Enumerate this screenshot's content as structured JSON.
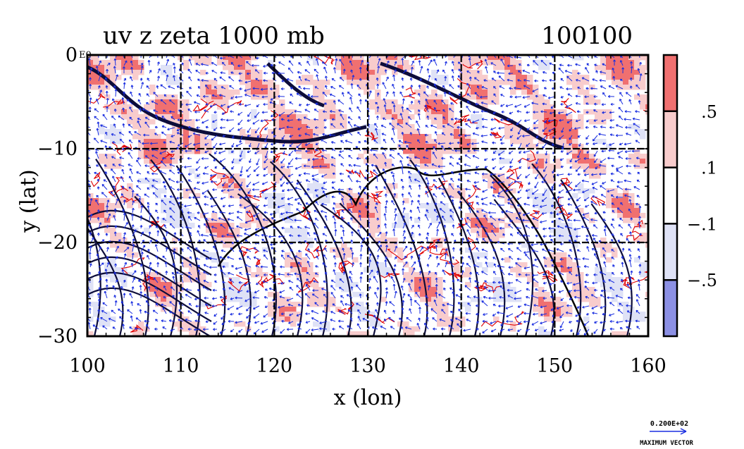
{
  "chart_data": {
    "type": "heatmap",
    "title": "uv z zeta 1000 mb",
    "time_label": "100100",
    "xlabel": "x (lon)",
    "ylabel": "y (lat)",
    "xlim": [
      100,
      160
    ],
    "ylim": [
      -30,
      0
    ],
    "x_ticks": [
      "100",
      "110",
      "120",
      "130",
      "140",
      "150",
      "160"
    ],
    "y_ticks": [
      "0",
      "−10",
      "−20",
      "−30"
    ],
    "corner_label": "E0",
    "grid": true,
    "colorbar": {
      "labels": [
        ".5",
        ".1",
        "−.1",
        "−.5"
      ],
      "colors": [
        "#f07070",
        "#f8cccc",
        "#ffffff",
        "#dfe2f6",
        "#8c90e4"
      ]
    },
    "vector_key": {
      "value": "0.200E+02",
      "label": "MAXIMUM VECTOR"
    },
    "colors": {
      "positive_strong": "#f07070",
      "positive_weak": "#f8cccc",
      "negative_weak": "#dfe2f6",
      "negative_strong": "#8c90e4",
      "vectors": "#1a2ee0",
      "contours": "#0d0d3a",
      "zeta_lines": "#e00000"
    }
  }
}
